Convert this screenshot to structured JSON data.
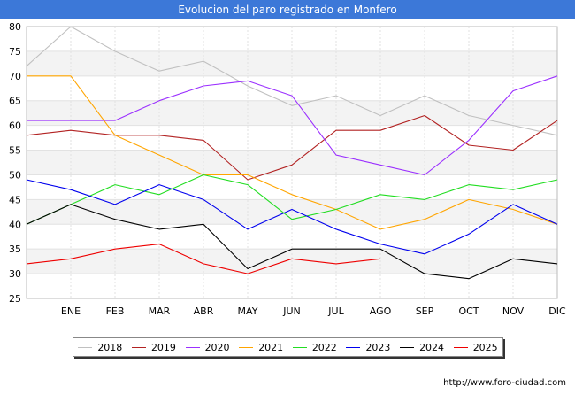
{
  "header": {
    "title": "Evolucion del paro registrado en Monfero"
  },
  "footer": {
    "url": "http://www.foro-ciudad.com"
  },
  "chart_data": {
    "type": "line",
    "title": "Evolucion del paro registrado en Monfero",
    "xlabel": "",
    "ylabel": "",
    "categories": [
      "",
      "ENE",
      "FEB",
      "MAR",
      "ABR",
      "MAY",
      "JUN",
      "JUL",
      "AGO",
      "SEP",
      "OCT",
      "NOV",
      "DIC"
    ],
    "ylim": [
      25,
      80
    ],
    "yticks": [
      25,
      30,
      35,
      40,
      45,
      50,
      55,
      60,
      65,
      70,
      75,
      80
    ],
    "grid": true,
    "legend_position": "bottom",
    "series": [
      {
        "name": "2018",
        "color": "#c0c0c0",
        "values": [
          72,
          80,
          75,
          71,
          73,
          68,
          64,
          66,
          62,
          66,
          62,
          60,
          58
        ]
      },
      {
        "name": "2019",
        "color": "#b22222",
        "values": [
          58,
          59,
          58,
          58,
          57,
          49,
          52,
          59,
          59,
          62,
          56,
          55,
          61
        ]
      },
      {
        "name": "2020",
        "color": "#9b30ff",
        "values": [
          61,
          61,
          61,
          65,
          68,
          69,
          66,
          54,
          52,
          50,
          57,
          67,
          70
        ]
      },
      {
        "name": "2021",
        "color": "#ffa500",
        "values": [
          70,
          70,
          58,
          54,
          50,
          50,
          46,
          43,
          39,
          41,
          45,
          43,
          40
        ]
      },
      {
        "name": "2022",
        "color": "#22dd22",
        "values": [
          40,
          44,
          48,
          46,
          50,
          48,
          41,
          43,
          46,
          45,
          48,
          47,
          49
        ]
      },
      {
        "name": "2023",
        "color": "#0000ee",
        "values": [
          49,
          47,
          44,
          48,
          45,
          39,
          43,
          39,
          36,
          34,
          38,
          44,
          40
        ]
      },
      {
        "name": "2024",
        "color": "#000000",
        "values": [
          40,
          44,
          41,
          39,
          40,
          31,
          35,
          35,
          35,
          30,
          29,
          33,
          32
        ]
      },
      {
        "name": "2025",
        "color": "#ee0000",
        "values": [
          32,
          33,
          35,
          36,
          32,
          30,
          33,
          32,
          33,
          null,
          null,
          null,
          null
        ]
      }
    ]
  }
}
